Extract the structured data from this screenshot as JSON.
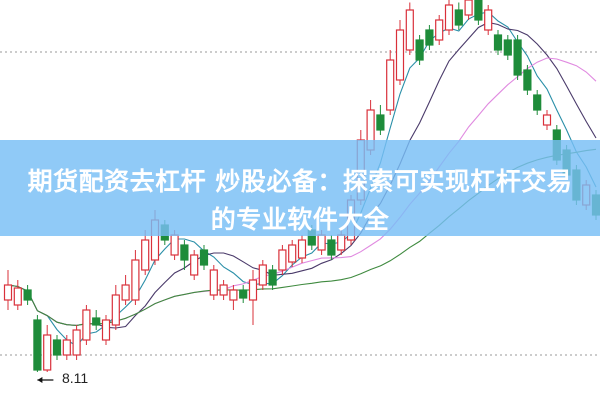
{
  "banner": {
    "line1": "期货配资去杠杆 炒股必备：探索可实现杠杆交易",
    "line2": "的专业软件大全"
  },
  "chart_data": {
    "type": "candlestick",
    "ylim": [
      7.55,
      15.55
    ],
    "grid": "dotted horizontal",
    "colors": {
      "up": "#d9303a",
      "down": "#1e8c3a",
      "ma_short": "#2a8fa8",
      "ma_mid": "#4a3a6a",
      "ma_long": "#e08ae0",
      "ma_longest": "#3f8a3f"
    },
    "annotation": {
      "text": "8.11",
      "candle_index": 3
    },
    "candles": [
      [
        9.55,
        9.85,
        10.15,
        9.35
      ],
      [
        9.45,
        9.79,
        9.95,
        9.35
      ],
      [
        9.75,
        9.55,
        9.85,
        9.45
      ],
      [
        9.15,
        8.15,
        9.25,
        8.11
      ],
      [
        8.15,
        8.85,
        9.05,
        8.11
      ],
      [
        8.75,
        8.45,
        8.85,
        8.35
      ],
      [
        8.45,
        8.75,
        8.85,
        8.35
      ],
      [
        8.45,
        8.95,
        9.05,
        8.35
      ],
      [
        8.75,
        9.35,
        9.45,
        8.65
      ],
      [
        9.19,
        9.05,
        9.35,
        8.95
      ],
      [
        8.75,
        9.15,
        9.25,
        8.65
      ],
      [
        9.05,
        9.65,
        9.85,
        8.95
      ],
      [
        9.55,
        9.85,
        10.05,
        9.45
      ],
      [
        9.55,
        10.35,
        10.55,
        9.45
      ],
      [
        10.15,
        10.75,
        10.95,
        10.05
      ],
      [
        10.35,
        11.15,
        11.35,
        10.25
      ],
      [
        11.05,
        10.75,
        11.15,
        10.65
      ],
      [
        10.45,
        10.85,
        10.95,
        10.35
      ],
      [
        10.65,
        10.35,
        10.75,
        10.15
      ],
      [
        10.05,
        10.45,
        10.55,
        9.95
      ],
      [
        10.55,
        10.25,
        10.65,
        10.15
      ],
      [
        9.65,
        10.15,
        10.25,
        9.55
      ],
      [
        9.65,
        9.85,
        9.95,
        9.55
      ],
      [
        9.55,
        9.75,
        9.85,
        9.35
      ],
      [
        9.75,
        9.59,
        9.85,
        9.49
      ],
      [
        9.55,
        9.95,
        10.15,
        9.05
      ],
      [
        9.85,
        10.25,
        10.35,
        9.75
      ],
      [
        10.15,
        9.85,
        10.25,
        9.75
      ],
      [
        10.15,
        10.55,
        10.65,
        10.05
      ],
      [
        10.31,
        10.65,
        10.75,
        10.21
      ],
      [
        10.39,
        10.75,
        10.85,
        10.29
      ],
      [
        10.95,
        10.65,
        11.05,
        10.55
      ],
      [
        10.55,
        10.85,
        10.95,
        10.45
      ],
      [
        10.75,
        10.45,
        10.85,
        10.35
      ],
      [
        10.55,
        10.85,
        10.95,
        10.45
      ],
      [
        10.75,
        11.55,
        11.65,
        10.65
      ],
      [
        11.55,
        12.75,
        12.95,
        11.45
      ],
      [
        12.55,
        13.35,
        13.55,
        12.45
      ],
      [
        13.25,
        12.95,
        13.45,
        12.85
      ],
      [
        13.35,
        14.35,
        14.55,
        13.25
      ],
      [
        13.95,
        14.95,
        15.15,
        13.85
      ],
      [
        14.55,
        15.35,
        15.5,
        14.45
      ],
      [
        14.75,
        14.35,
        14.85,
        14.25
      ],
      [
        14.95,
        14.65,
        15.05,
        14.55
      ],
      [
        14.75,
        15.15,
        15.25,
        14.65
      ],
      [
        14.95,
        15.45,
        15.55,
        14.85
      ],
      [
        15.35,
        15.05,
        15.5,
        14.95
      ],
      [
        15.25,
        15.55,
        15.55,
        15.15
      ],
      [
        15.55,
        15.15,
        15.55,
        15.05
      ],
      [
        14.95,
        15.35,
        15.45,
        14.85
      ],
      [
        14.85,
        14.55,
        14.95,
        14.45
      ],
      [
        14.75,
        14.45,
        14.85,
        14.35
      ],
      [
        14.75,
        14.05,
        14.85,
        13.95
      ],
      [
        14.15,
        13.75,
        14.25,
        13.65
      ],
      [
        13.65,
        13.35,
        13.75,
        13.25
      ],
      [
        13.05,
        13.25,
        13.35,
        12.95
      ],
      [
        12.95,
        12.35,
        13.05,
        12.25
      ],
      [
        12.55,
        12.05,
        12.65,
        11.95
      ],
      [
        12.15,
        11.55,
        12.25,
        11.45
      ],
      [
        11.45,
        11.85,
        11.95,
        11.35
      ],
      [
        11.65,
        11.25,
        11.75,
        11.15
      ]
    ]
  }
}
